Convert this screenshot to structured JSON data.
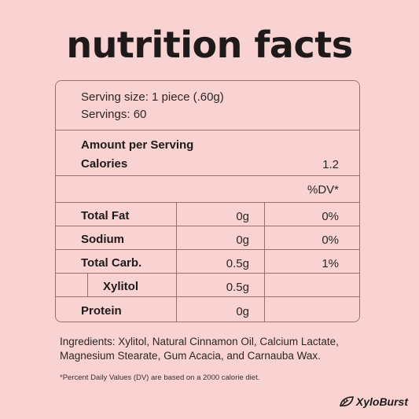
{
  "title": "nutrition facts",
  "serving": {
    "size": "Serving size: 1 piece (.60g)",
    "servings": "Servings: 60"
  },
  "amount_header": "Amount per Serving",
  "calories": {
    "label": "Calories",
    "value": "1.2"
  },
  "dv_header": "%DV*",
  "nutrients": [
    {
      "name": "Total Fat",
      "amount": "0g",
      "dv": "0%"
    },
    {
      "name": "Sodium",
      "amount": "0g",
      "dv": "0%"
    },
    {
      "name": "Total Carb.",
      "amount": "0.5g",
      "dv": "1%"
    },
    {
      "name": "Xylitol",
      "amount": "0.5g",
      "dv": ""
    },
    {
      "name": "Protein",
      "amount": "0g",
      "dv": ""
    }
  ],
  "ingredients": "Ingredients: Xylitol, Natural Cinnamon Oil, Calcium Lactate, Magnesium Stearate, Gum Acacia, and Carnauba Wax.",
  "footnote": "*Percent Daily Values (DV) are based on a 2000 calorie diet.",
  "brand": {
    "name": "XyloBurst",
    "icon": "leaf-icon"
  }
}
